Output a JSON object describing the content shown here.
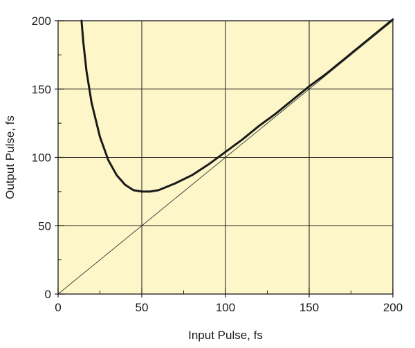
{
  "chart_data": {
    "type": "line",
    "title": "",
    "xlabel": "Input Pulse, fs",
    "ylabel": "Output Pulse, fs",
    "xlim": [
      0,
      200
    ],
    "ylim": [
      0,
      200
    ],
    "x_ticks": [
      0,
      50,
      100,
      150,
      200
    ],
    "y_ticks": [
      0,
      50,
      100,
      150,
      200
    ],
    "x_tick_labels": [
      "0",
      "50",
      "100",
      "150",
      "200"
    ],
    "y_tick_labels": [
      "0",
      "50",
      "100",
      "150",
      "200"
    ],
    "grid": true,
    "plot_background": "#fcf6c8",
    "series": [
      {
        "color": "#1a1a1a",
        "style": "thick",
        "x": [
          14,
          15,
          17,
          20,
          25,
          30,
          35,
          40,
          45,
          50,
          55,
          60,
          70,
          80,
          90,
          100,
          110,
          120,
          130,
          140,
          150,
          160,
          170,
          180,
          190,
          200
        ],
        "y": [
          200,
          185,
          163,
          140,
          115,
          98,
          87,
          80,
          76,
          75,
          75,
          76,
          81,
          87,
          95,
          104,
          113,
          123,
          132,
          142,
          152,
          161,
          171,
          181,
          191,
          201
        ]
      },
      {
        "color": "#333333",
        "style": "thin",
        "x": [
          0,
          200
        ],
        "y": [
          0,
          200
        ]
      }
    ]
  }
}
